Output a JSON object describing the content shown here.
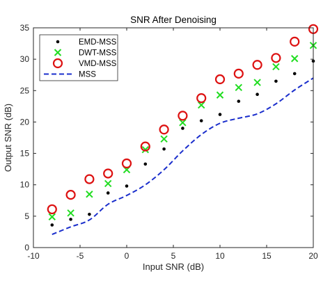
{
  "chart_data": {
    "type": "scatter",
    "title": "SNR After Denoising",
    "xlabel": "Input SNR (dB)",
    "ylabel": "Output SNR (dB)",
    "xlim": [
      -10,
      20
    ],
    "ylim": [
      0,
      35
    ],
    "xticks": [
      -10,
      -5,
      0,
      5,
      10,
      15,
      20
    ],
    "yticks": [
      0,
      5,
      10,
      15,
      20,
      25,
      30,
      35
    ],
    "grid": false,
    "legend_position": "top-left",
    "series": [
      {
        "name": "EMD-MSS",
        "marker": "dot",
        "color": "#000000",
        "x": [
          -8,
          -6,
          -4,
          -2,
          0,
          2,
          4,
          6,
          8,
          10,
          12,
          14,
          16,
          18,
          20
        ],
        "y": [
          3.6,
          4.5,
          5.3,
          8.7,
          9.8,
          13.3,
          15.7,
          19.0,
          20.2,
          21.2,
          23.3,
          24.4,
          26.5,
          27.7,
          29.7
        ]
      },
      {
        "name": "DWT-MSS",
        "marker": "x",
        "color": "#22dd22",
        "x": [
          -8,
          -6,
          -4,
          -2,
          0,
          2,
          4,
          6,
          8,
          10,
          12,
          14,
          16,
          18,
          20
        ],
        "y": [
          4.9,
          5.5,
          8.5,
          10.2,
          12.4,
          15.6,
          17.3,
          19.9,
          22.7,
          24.3,
          25.5,
          26.3,
          28.8,
          30.1,
          32.2
        ]
      },
      {
        "name": "VMD-MSS",
        "marker": "circle",
        "color": "#dd1111",
        "x": [
          -8,
          -6,
          -4,
          -2,
          0,
          2,
          4,
          6,
          8,
          10,
          12,
          14,
          16,
          18,
          20
        ],
        "y": [
          6.1,
          8.4,
          10.9,
          11.8,
          13.4,
          16.1,
          18.8,
          21.0,
          23.8,
          26.8,
          27.7,
          29.1,
          30.2,
          32.8,
          34.8
        ]
      },
      {
        "name": "MSS",
        "marker": "dashed-line",
        "color": "#1a2ecc",
        "x": [
          -8,
          -6,
          -4,
          -2,
          0,
          2,
          4,
          6,
          8,
          10,
          12,
          14,
          16,
          18,
          20
        ],
        "y": [
          2.1,
          3.3,
          4.4,
          6.9,
          8.3,
          10.0,
          12.4,
          15.4,
          18.0,
          19.8,
          20.6,
          21.3,
          22.9,
          25.1,
          27.0
        ]
      }
    ]
  }
}
